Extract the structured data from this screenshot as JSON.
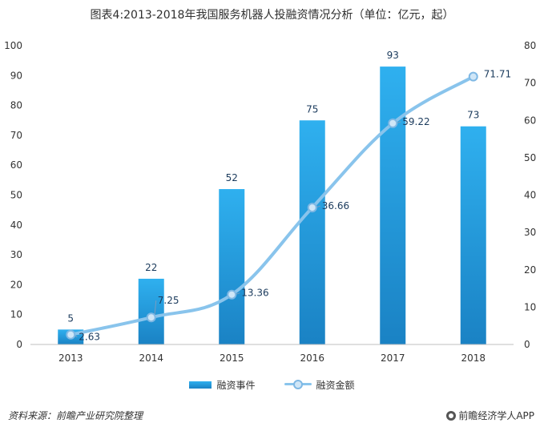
{
  "chart_data": {
    "type": "bar+line",
    "title": "图表4:2013-2018年我国服务机器人投融资情况分析（单位：亿元，起）",
    "categories": [
      "2013",
      "2014",
      "2015",
      "2016",
      "2017",
      "2018"
    ],
    "series": [
      {
        "name": "融资事件",
        "type": "bar",
        "axis": "left",
        "values": [
          5,
          22,
          52,
          75,
          93,
          73
        ],
        "labels": [
          "5",
          "22",
          "52",
          "75",
          "93",
          "73"
        ]
      },
      {
        "name": "融资金额",
        "type": "line",
        "axis": "right",
        "values": [
          2.63,
          7.25,
          13.36,
          36.66,
          59.22,
          71.71
        ],
        "labels": [
          "2.63",
          "7.25",
          "13.36",
          "36.66",
          "59.22",
          "71.71"
        ]
      }
    ],
    "y_left": {
      "range": [
        0,
        100
      ],
      "ticks": [
        "0",
        "10",
        "20",
        "30",
        "40",
        "50",
        "60",
        "70",
        "80",
        "90",
        "100"
      ]
    },
    "y_right": {
      "range": [
        0,
        80
      ],
      "ticks": [
        "0",
        "10",
        "20",
        "30",
        "40",
        "50",
        "60",
        "70",
        "80"
      ]
    },
    "grid": false,
    "legend": "bottom-center"
  },
  "colors": {
    "bar_top": "#2fb0ef",
    "bar_bottom": "#1a82c4",
    "line": "#89c4ec",
    "marker_fill": "#cfe6f7",
    "marker_stroke": "#7fb8e4",
    "axis": "#bfbfbf"
  },
  "footer": {
    "source": "资料来源：前瞻产业研究院整理",
    "brand": "前瞻经济学人APP",
    "brand_icon": "brand-logo-icon"
  }
}
